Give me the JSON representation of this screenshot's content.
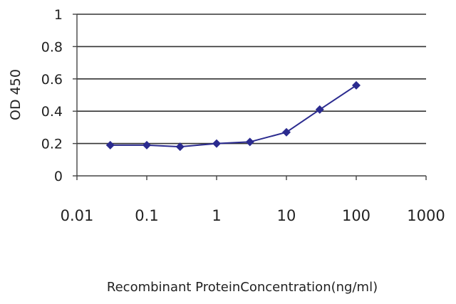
{
  "chart_data": {
    "type": "line",
    "title": "",
    "xlabel": "Recombinant ProteinConcentration(ng/ml)",
    "ylabel": "OD 450",
    "x_scale": "log",
    "xlim": [
      0.01,
      1000
    ],
    "ylim": [
      0,
      1
    ],
    "x_ticks": [
      "0.01",
      "0.1",
      "1",
      "10",
      "100",
      "1000"
    ],
    "y_ticks": [
      "0",
      "0.2",
      "0.4",
      "0.6",
      "0.8",
      "1"
    ],
    "grid": "horizontal",
    "series": [
      {
        "x": [
          0.03,
          0.1,
          0.3,
          1,
          3,
          10,
          30,
          100
        ],
        "y": [
          0.19,
          0.19,
          0.18,
          0.2,
          0.21,
          0.27,
          0.41,
          0.56
        ]
      }
    ],
    "colors": {
      "series": "#2b2b8f",
      "grid": "#333333",
      "axis": "#444444"
    }
  }
}
